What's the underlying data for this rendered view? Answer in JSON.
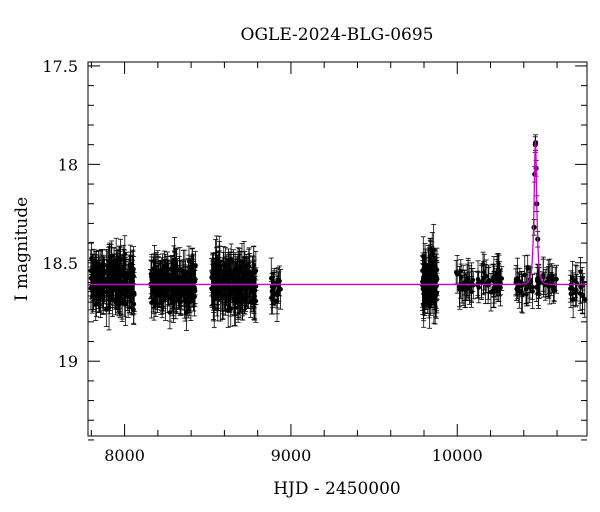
{
  "chart_data": {
    "type": "scatter",
    "title": "OGLE-2024-BLG-0695",
    "xlabel": "HJD - 2450000",
    "ylabel": "I magnitude",
    "xlim": [
      7780,
      10780
    ],
    "ylim": [
      19.38,
      17.48
    ],
    "y_inverted": true,
    "xticks": [
      8000,
      9000,
      10000
    ],
    "xtick_labels": [
      "8000",
      "9000",
      "10000"
    ],
    "yticks": [
      17.5,
      18,
      18.5,
      19
    ],
    "ytick_labels": [
      "17.5",
      "18",
      "18.5",
      "19"
    ],
    "baseline_mag": 18.61,
    "model_color": "#cc00cc",
    "point_color": "#000000",
    "grid": false,
    "seasons": [
      {
        "start": 7795,
        "end": 8060,
        "count": 200,
        "mean": 18.6,
        "scatter": 0.1,
        "err": 0.09
      },
      {
        "start": 8155,
        "end": 8430,
        "count": 190,
        "mean": 18.6,
        "scatter": 0.09,
        "err": 0.09
      },
      {
        "start": 8520,
        "end": 8790,
        "count": 190,
        "mean": 18.61,
        "scatter": 0.09,
        "err": 0.1
      },
      {
        "start": 8880,
        "end": 8940,
        "count": 22,
        "mean": 18.63,
        "scatter": 0.06,
        "err": 0.08
      },
      {
        "start": 9790,
        "end": 9880,
        "count": 90,
        "mean": 18.6,
        "scatter": 0.1,
        "err": 0.1
      },
      {
        "start": 9990,
        "end": 10270,
        "count": 60,
        "mean": 18.6,
        "scatter": 0.05,
        "err": 0.08
      },
      {
        "start": 10350,
        "end": 10600,
        "count": 50,
        "mean": 18.6,
        "scatter": 0.05,
        "err": 0.08
      },
      {
        "start": 10680,
        "end": 10780,
        "count": 20,
        "mean": 18.64,
        "scatter": 0.05,
        "err": 0.08
      }
    ],
    "event": {
      "t0": 10470,
      "peak_mag": 17.88,
      "tE": 13,
      "points": [
        {
          "x": 10462,
          "y": 18.32
        },
        {
          "x": 10466,
          "y": 18.05
        },
        {
          "x": 10469,
          "y": 17.9
        },
        {
          "x": 10471,
          "y": 17.89
        },
        {
          "x": 10474,
          "y": 18.02
        },
        {
          "x": 10478,
          "y": 18.2
        },
        {
          "x": 10484,
          "y": 18.38
        }
      ]
    }
  }
}
